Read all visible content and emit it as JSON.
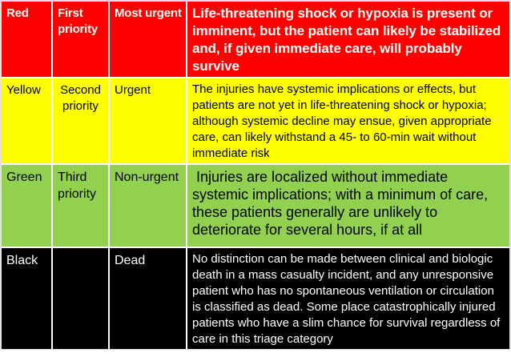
{
  "page": {
    "background": "#ffffff",
    "separator_color": "#ffffff",
    "outer_border_color": "#e2e2e2"
  },
  "table": {
    "rows": [
      {
        "color_label": "Red",
        "priority": "First priority",
        "urgency": "Most urgent",
        "description": "Life-threatening shock or hypoxia is present or imminent, but the patient can likely be stabilized and, if given immediate care, will probably survive",
        "bg": "#ff0000",
        "fg": "#ffffff"
      },
      {
        "color_label": "Yellow",
        "priority": "Second priority",
        "urgency": "Urgent",
        "description": "The injuries have systemic implications or effects, but patients are not yet in life-threatening shock or hypoxia; although systemic decline may ensue, given appropriate care, can likely withstand a 45- to 60-min wait without immediate risk",
        "bg": "#ffff00",
        "fg": "#000000"
      },
      {
        "color_label": "Green",
        "priority": "Third priority",
        "urgency": "Non-urgent",
        "description": " Injuries are localized without immediate systemic implications; with a minimum of care, these patients generally are unlikely to deteriorate for several hours, if at all",
        "bg": "#92d050",
        "fg": "#000000"
      },
      {
        "color_label": "Black",
        "priority": "",
        "urgency": "Dead",
        "description": "No distinction can be made between clinical and biologic death in a mass casualty incident, and any unresponsive patient who has no spontaneous ventilation or circulation is classified as dead. Some place catastrophically injured patients who have a slim chance for survival regardless of care in this triage category",
        "bg": "#000000",
        "fg": "#ffffff"
      }
    ]
  }
}
